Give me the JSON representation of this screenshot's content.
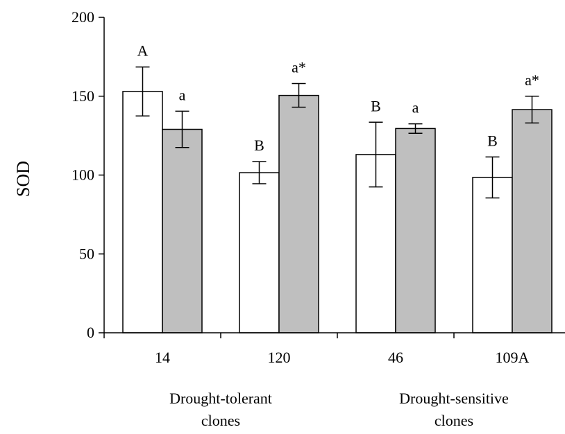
{
  "chart_data": {
    "type": "bar",
    "ylabel": "SOD",
    "xlabel": "",
    "ylim": [
      0,
      200
    ],
    "yticks": [
      0,
      50,
      100,
      150,
      200
    ],
    "grid": false,
    "legend": "none",
    "categories": [
      "14",
      "120",
      "46",
      "109A"
    ],
    "groups": [
      {
        "label_lines": [
          "Drought-tolerant",
          "clones"
        ],
        "categories": [
          "14",
          "120"
        ]
      },
      {
        "label_lines": [
          "Drought-sensitive",
          "clones"
        ],
        "categories": [
          "46",
          "109A"
        ]
      }
    ],
    "series": [
      {
        "color": "#ffffff",
        "values": [
          153,
          101.5,
          113,
          98.5
        ],
        "error": [
          15.5,
          7,
          20.5,
          13
        ],
        "annotations": [
          "A",
          "B",
          "B",
          "B"
        ]
      },
      {
        "color": "#bfbfbf",
        "values": [
          129,
          150.5,
          129.5,
          141.5
        ],
        "error": [
          11.5,
          7.5,
          3,
          8.5
        ],
        "annotations": [
          "a",
          "a*",
          "a",
          "a*"
        ]
      }
    ]
  }
}
